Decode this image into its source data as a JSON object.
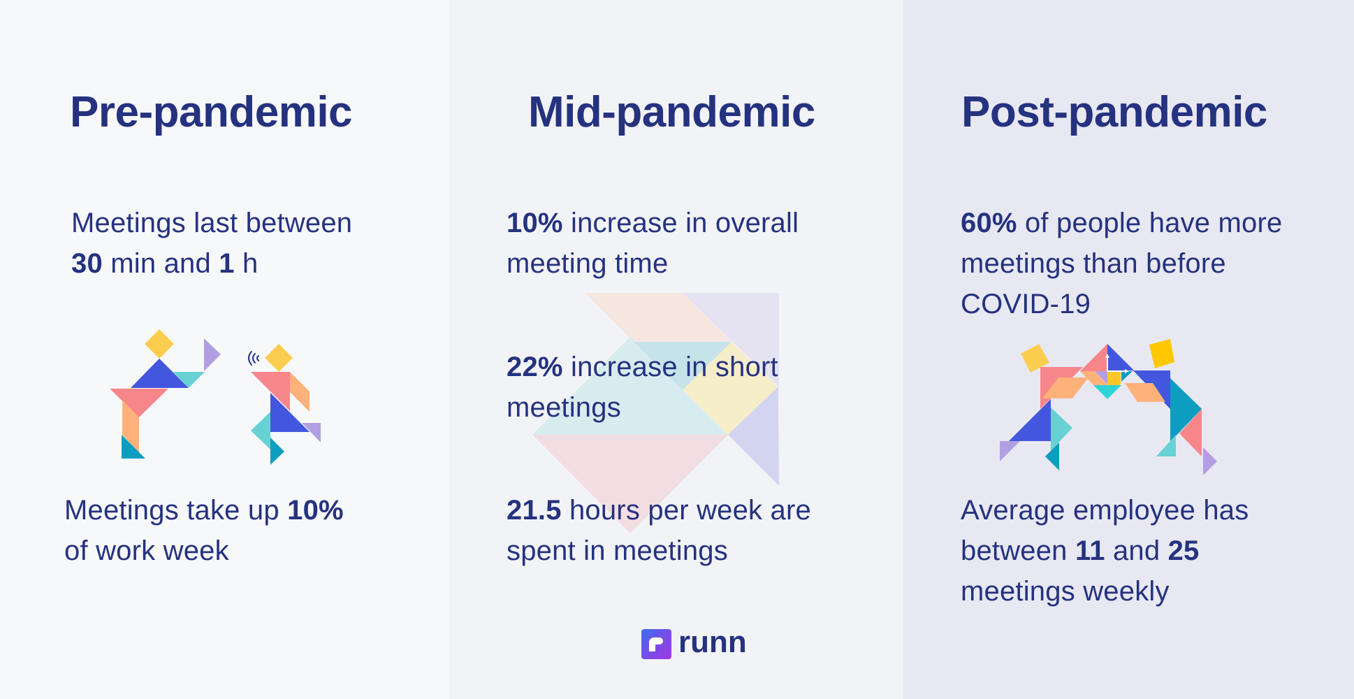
{
  "columns": [
    {
      "id": "pre",
      "title": "Pre-pandemic",
      "background": "#f7f8fa",
      "stats": [
        {
          "lines": [
            [
              {
                "t": "Meetings last between",
                "b": false
              }
            ],
            [
              {
                "t": "30",
                "b": true
              },
              {
                "t": " min and ",
                "b": false
              },
              {
                "t": "1",
                "b": true
              },
              {
                "t": " h",
                "b": false
              }
            ]
          ]
        },
        {
          "lines": [
            [
              {
                "t": "Meetings take up ",
                "b": false
              },
              {
                "t": "10%",
                "b": true
              }
            ],
            [
              {
                "t": "of work week",
                "b": false
              }
            ]
          ]
        }
      ],
      "illustration": "two-tangram-figures-talking"
    },
    {
      "id": "mid",
      "title": "Mid-pandemic",
      "background": "#f2f3f6",
      "stats": [
        {
          "lines": [
            [
              {
                "t": "10%",
                "b": true
              },
              {
                "t": " increase in overall",
                "b": false
              }
            ],
            [
              {
                "t": "meeting time",
                "b": false
              }
            ]
          ]
        },
        {
          "lines": [
            [
              {
                "t": "22%",
                "b": true
              },
              {
                "t": " increase in short",
                "b": false
              }
            ],
            [
              {
                "t": "meetings",
                "b": false
              }
            ]
          ]
        },
        {
          "lines": [
            [
              {
                "t": "21.5",
                "b": true
              },
              {
                "t": " hours per week are",
                "b": false
              }
            ],
            [
              {
                "t": "spent in meetings",
                "b": false
              }
            ]
          ]
        }
      ],
      "illustration": "faded-tangram-arrow"
    },
    {
      "id": "post",
      "title": "Post-pandemic",
      "background": "#e8e8f2",
      "stats": [
        {
          "lines": [
            [
              {
                "t": "60%",
                "b": true
              },
              {
                "t": " of people have more",
                "b": false
              }
            ],
            [
              {
                "t": "meetings than before",
                "b": false
              }
            ],
            [
              {
                "t": "COVID-19",
                "b": false
              }
            ]
          ]
        },
        {
          "lines": [
            [
              {
                "t": "Average employee has",
                "b": false
              }
            ],
            [
              {
                "t": "between ",
                "b": false
              },
              {
                "t": "11",
                "b": true
              },
              {
                "t": " and ",
                "b": false
              },
              {
                "t": "25",
                "b": true
              }
            ],
            [
              {
                "t": "meetings weekly",
                "b": false
              }
            ]
          ]
        }
      ],
      "illustration": "two-tangram-figures-high-five"
    }
  ],
  "brand": {
    "name": "runn",
    "icon": "runn-logo-icon"
  },
  "colors": {
    "text": "#25327f",
    "yellow": "#fdcd4f",
    "blue": "#4257de",
    "teal": "#67d1d4",
    "darkTeal": "#0b9ec1",
    "pink": "#f7868b",
    "peach": "#ffb17a",
    "lavender": "#b29fe3"
  }
}
